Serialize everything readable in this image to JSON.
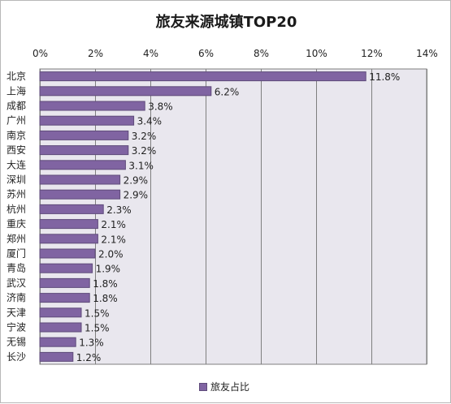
{
  "chart_data": {
    "type": "bar",
    "orientation": "horizontal",
    "title": "旅友来源城镇TOP20",
    "categories": [
      "北京",
      "上海",
      "成都",
      "广州",
      "南京",
      "西安",
      "大连",
      "深圳",
      "苏州",
      "杭州",
      "重庆",
      "郑州",
      "厦门",
      "青岛",
      "武汉",
      "济南",
      "天津",
      "宁波",
      "无锡",
      "长沙"
    ],
    "series": [
      {
        "name": "旅友占比",
        "values": [
          11.8,
          6.2,
          3.8,
          3.4,
          3.2,
          3.2,
          3.1,
          2.9,
          2.9,
          2.3,
          2.1,
          2.1,
          2.0,
          1.9,
          1.8,
          1.8,
          1.5,
          1.5,
          1.3,
          1.2
        ],
        "labels": [
          "11.8%",
          "6.2%",
          "3.8%",
          "3.4%",
          "3.2%",
          "3.2%",
          "3.1%",
          "2.9%",
          "2.9%",
          "2.3%",
          "2.1%",
          "2.1%",
          "2.0%",
          "1.9%",
          "1.8%",
          "1.8%",
          "1.5%",
          "1.5%",
          "1.3%",
          "1.2%"
        ]
      }
    ],
    "xlim": [
      0,
      14
    ],
    "xticks": [
      "0%",
      "2%",
      "4%",
      "6%",
      "8%",
      "10%",
      "12%",
      "14%"
    ],
    "xaxis_position": "top",
    "grid": true,
    "legend": "bottom",
    "colors": {
      "bar": "#8064a2",
      "bar_border": "#5f4b7b",
      "plot_bg": "#e9e7ee",
      "grid": "#7f7f7f"
    }
  }
}
